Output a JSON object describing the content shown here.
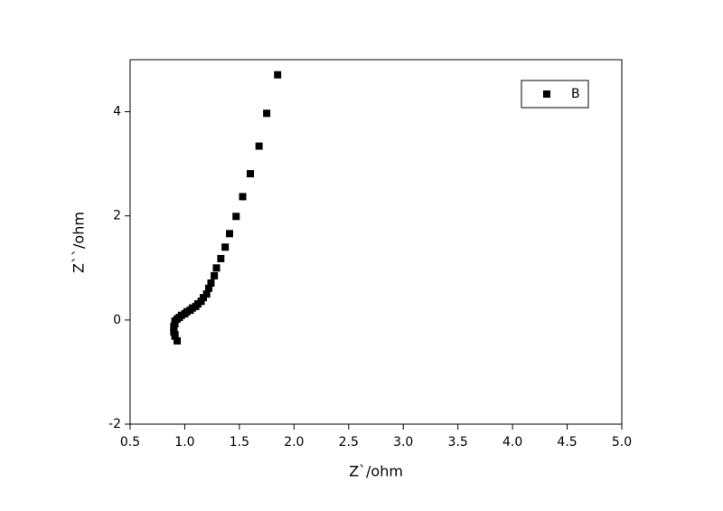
{
  "chart_data": {
    "type": "scatter",
    "xlabel": "Z`/ohm",
    "ylabel": "Z``/ohm",
    "xlim": [
      0.5,
      5.0
    ],
    "ylim": [
      -2,
      5
    ],
    "xticks": [
      0.5,
      {
        "value": 1,
        "label": "1.0"
      },
      1.5,
      {
        "value": 2,
        "label": "2.0"
      },
      2.5,
      {
        "value": 3,
        "label": "3.0"
      },
      3.5,
      {
        "value": 4,
        "label": "4.0"
      },
      4.5,
      {
        "value": 5,
        "label": "5.0"
      }
    ],
    "yticks": [
      -2,
      0,
      2,
      4
    ],
    "legend": "upper right",
    "series": [
      {
        "name": "B",
        "color": "#000000",
        "x": [
          1.85,
          1.75,
          1.68,
          1.6,
          1.53,
          1.47,
          1.41,
          1.37,
          1.33,
          1.29,
          1.27,
          1.24,
          1.22,
          1.2,
          1.17,
          1.15,
          1.12,
          1.1,
          1.07,
          1.05,
          1.02,
          1.0,
          0.97,
          0.95,
          0.93,
          0.91,
          0.91,
          0.9,
          0.9,
          0.9,
          0.91,
          0.91,
          0.93
        ],
        "values": [
          4.71,
          3.97,
          3.34,
          2.81,
          2.37,
          1.99,
          1.66,
          1.4,
          1.18,
          1.0,
          0.85,
          0.71,
          0.61,
          0.5,
          0.43,
          0.36,
          0.31,
          0.26,
          0.23,
          0.19,
          0.16,
          0.12,
          0.09,
          0.05,
          0.02,
          -0.02,
          -0.07,
          -0.12,
          -0.17,
          -0.23,
          -0.28,
          -0.31,
          -0.4
        ]
      }
    ]
  }
}
